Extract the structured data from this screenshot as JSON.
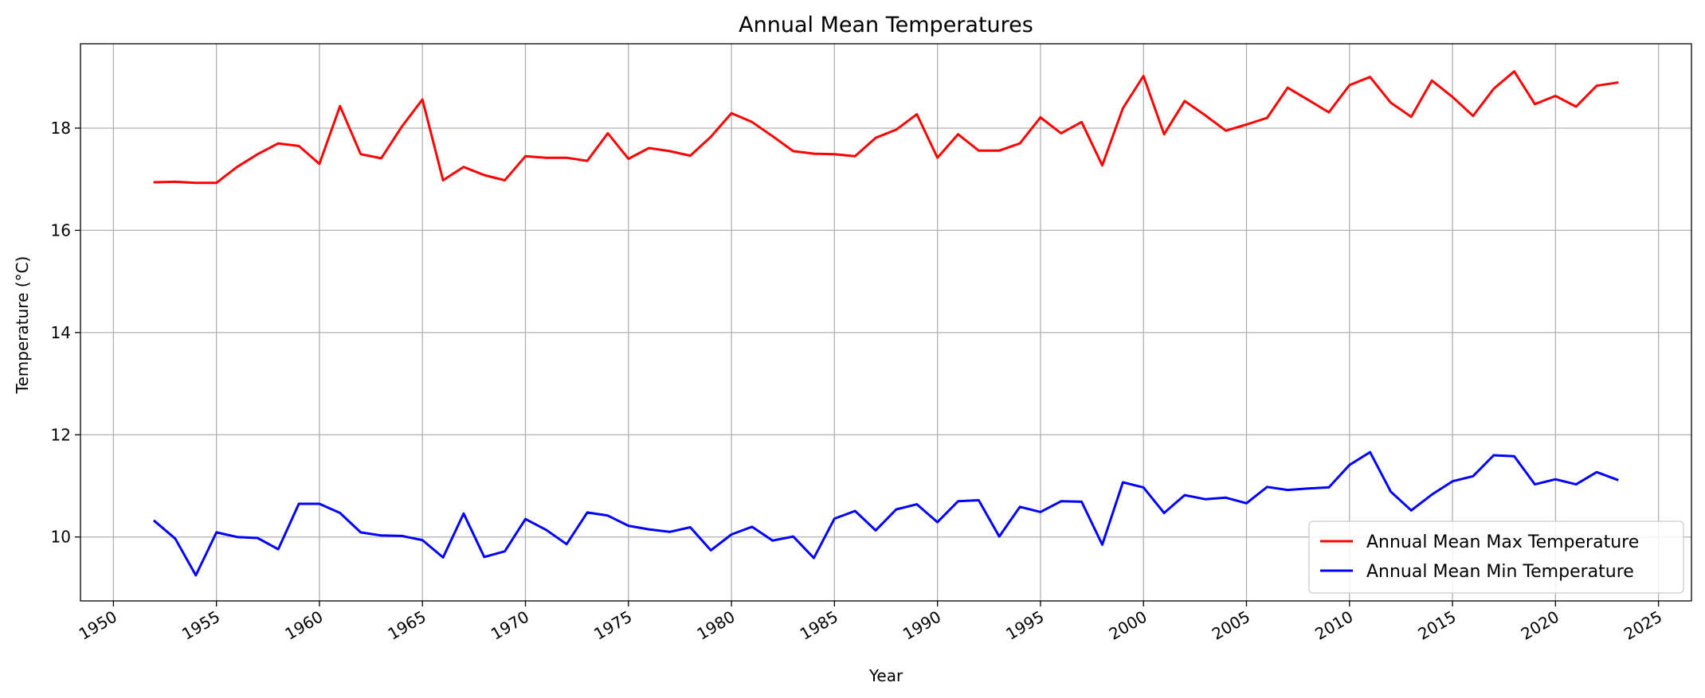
{
  "chart_data": {
    "type": "line",
    "title": "Annual Mean Temperatures",
    "xlabel": "Year",
    "ylabel": "Temperature (°C)",
    "xlim": [
      1948.4,
      2026.6
    ],
    "ylim": [
      8.75,
      19.65
    ],
    "x_ticks": [
      "1950",
      "1955",
      "1960",
      "1965",
      "1970",
      "1975",
      "1980",
      "1985",
      "1990",
      "1995",
      "2000",
      "2005",
      "2010",
      "2015",
      "2020",
      "2025"
    ],
    "y_ticks": [
      "10",
      "12",
      "14",
      "16",
      "18"
    ],
    "grid": true,
    "legend_position": "lower-right",
    "x": [
      1952,
      1953,
      1954,
      1955,
      1956,
      1957,
      1958,
      1959,
      1960,
      1961,
      1962,
      1963,
      1964,
      1965,
      1966,
      1967,
      1968,
      1969,
      1970,
      1971,
      1972,
      1973,
      1974,
      1975,
      1976,
      1977,
      1978,
      1979,
      1980,
      1981,
      1982,
      1983,
      1984,
      1985,
      1986,
      1987,
      1988,
      1989,
      1990,
      1991,
      1992,
      1993,
      1994,
      1995,
      1996,
      1997,
      1998,
      1999,
      2000,
      2001,
      2002,
      2003,
      2004,
      2005,
      2006,
      2007,
      2008,
      2009,
      2010,
      2011,
      2012,
      2013,
      2014,
      2015,
      2016,
      2017,
      2018,
      2019,
      2020,
      2021,
      2022,
      2023
    ],
    "series": [
      {
        "name": "Annual Mean Max Temperature",
        "color": "#ff0000",
        "values": [
          16.94,
          16.95,
          16.93,
          16.93,
          17.24,
          17.49,
          17.7,
          17.65,
          17.3,
          18.43,
          17.49,
          17.41,
          18.03,
          18.56,
          16.98,
          17.24,
          17.08,
          16.98,
          17.45,
          17.42,
          17.42,
          17.36,
          17.9,
          17.4,
          17.61,
          17.55,
          17.46,
          17.83,
          18.29,
          18.12,
          17.84,
          17.55,
          17.5,
          17.49,
          17.45,
          17.81,
          17.97,
          18.27,
          17.42,
          17.88,
          17.56,
          17.56,
          17.7,
          18.21,
          17.9,
          18.12,
          17.27,
          18.39,
          19.02,
          17.88,
          18.53,
          18.25,
          17.95,
          18.07,
          18.2,
          18.79,
          18.55,
          18.31,
          18.84,
          19.0,
          18.5,
          18.22,
          18.93,
          18.61,
          18.24,
          18.77,
          19.11,
          18.47,
          18.63,
          18.42,
          18.83,
          18.89
        ]
      },
      {
        "name": "Annual Mean Min Temperature",
        "color": "#0000ff",
        "values": [
          10.31,
          9.97,
          9.25,
          10.09,
          10.0,
          9.98,
          9.76,
          10.65,
          10.65,
          10.47,
          10.09,
          10.03,
          10.02,
          9.94,
          9.6,
          10.46,
          9.61,
          9.72,
          10.35,
          10.14,
          9.86,
          10.48,
          10.42,
          10.22,
          10.15,
          10.1,
          10.19,
          9.74,
          10.05,
          10.2,
          9.93,
          10.01,
          9.59,
          10.36,
          10.51,
          10.13,
          10.54,
          10.64,
          10.29,
          10.7,
          10.72,
          10.01,
          10.59,
          10.49,
          10.7,
          10.69,
          9.85,
          11.07,
          10.97,
          10.47,
          10.82,
          10.74,
          10.77,
          10.66,
          10.98,
          10.92,
          10.95,
          10.97,
          11.41,
          11.66,
          10.89,
          10.52,
          10.83,
          11.09,
          11.19,
          11.6,
          11.58,
          11.03,
          11.13,
          11.03,
          11.27,
          11.12
        ]
      }
    ]
  }
}
